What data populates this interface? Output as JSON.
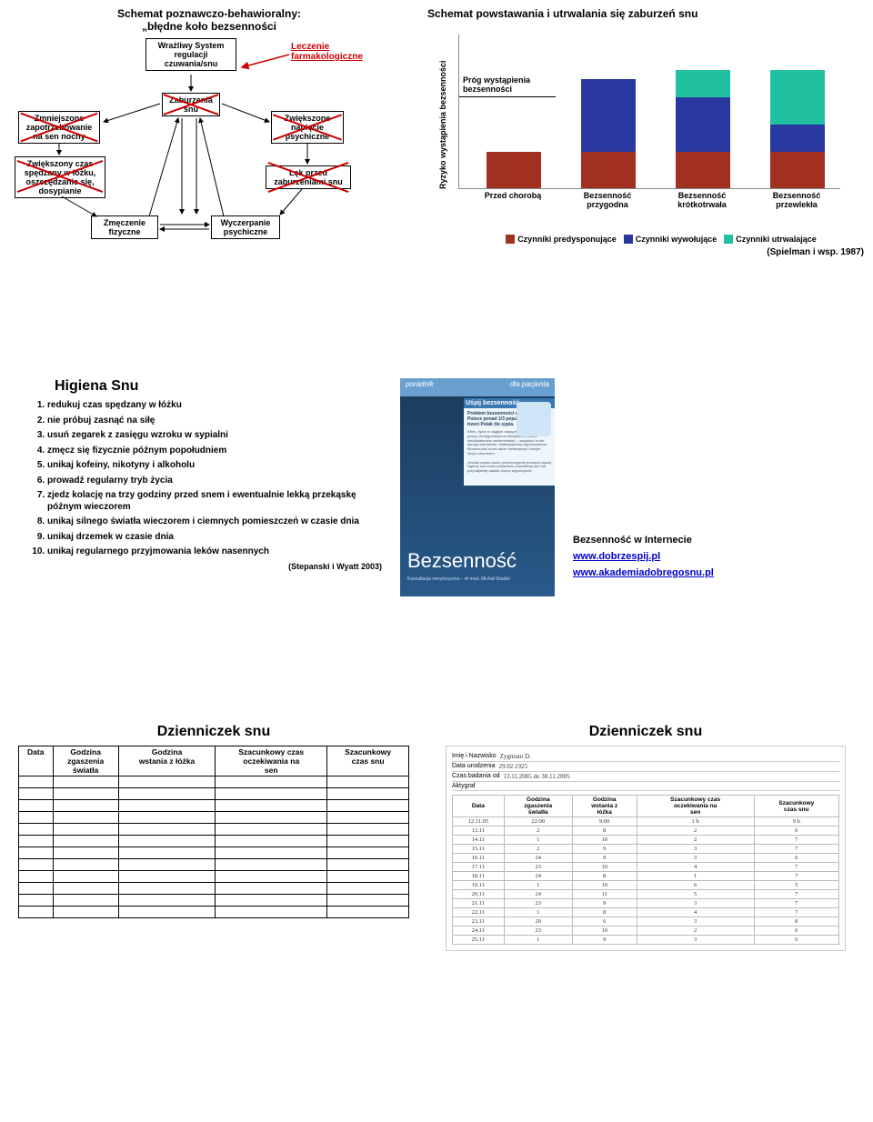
{
  "row1": {
    "left": {
      "title_l1": "Schemat poznawczo-behawioralny:",
      "title_l2": "„błędne koło bezsenności",
      "boxes": {
        "system": "Wrażliwy System\nregulacji\nczuwania/snu",
        "zaburzenia": "Zaburzenia\nsnu",
        "zmniejszone": "Zmniejszone\nzapotrzebowanie\nna sen nocny",
        "zwiekszony_czas": "Zwiększony czas\nspędzany w łóżku,\noszczędzanie się,\ndosypianie",
        "zmeczenie": "Zmęczenie\nfizyczne",
        "wyczerpanie": "Wyczerpanie\npsychiczne",
        "napiecie": "Zwiększone\nnapięcie\npsychiczne",
        "lek": "Lęk przed\nzaburzeniami snu"
      },
      "leczenie_l1": "Leczenie",
      "leczenie_l2": "farmakologiczne"
    },
    "right": {
      "title": "Schemat powstawania i utrwalania się zaburzeń snu",
      "y_axis": "Ryzyko wystąpienia bezsenności",
      "threshold": "Próg wystąpienia\nbezsenności",
      "categories": [
        "Przed chorobą",
        "Bezsenność\nprzygodna",
        "Bezsenność\nkrótkotrwała",
        "Bezsenność\nprzewlekła"
      ],
      "series": [
        {
          "name": "Czynniki predysponujące",
          "color": "#a03020",
          "values": [
            40,
            40,
            40,
            40
          ]
        },
        {
          "name": "Czynniki wywołujące",
          "color": "#2838a0",
          "values": [
            0,
            80,
            60,
            30
          ]
        },
        {
          "name": "Czynniki utrwalające",
          "color": "#20c0a0",
          "values": [
            0,
            0,
            30,
            60
          ]
        }
      ],
      "threshold_value": 100,
      "cite": "(Spielman  i wsp. 1987)"
    }
  },
  "row2": {
    "left": {
      "title": "Higiena Snu",
      "items": [
        "redukuj czas spędzany w łóżku",
        "nie próbuj zasnąć na siłę",
        "usuń zegarek z zasięgu wzroku w sypialni",
        "zmęcz się fizycznie późnym popołudniem",
        "unikaj kofeiny, nikotyny i alkoholu",
        "prowadź regularny tryb życia",
        "zjedz kolację na trzy godziny przed snem i ewentualnie lekką przekąskę późnym wieczorem",
        "unikaj silnego światła wieczorem i ciemnych pomieszczeń w czasie dnia",
        "unikaj drzemek w czasie dnia",
        "unikaj regularnego przyjmowania leków nasennych"
      ],
      "cite": "(Stepanski i Wyatt 2003)"
    },
    "right": {
      "booklet": {
        "top_left": "poradnik",
        "top_right": "dla pacjenta",
        "side_title": "Uśpij bezsenność",
        "side_lead": "Problem bezsenności dotyczy w Polsce ponad 1/3 populacji, czyli co trzeci Polak źle sypia.",
        "title": "Bezsenność",
        "sub": "Konsultacja merytoryczna – dr med. Michał Skalski"
      },
      "links_title": "Bezsenność w Internecie",
      "link1": "www.dobrzespij.pl",
      "link2": "www.akademiadobregosnu.pl"
    }
  },
  "row3": {
    "title": "Dzienniczek snu",
    "headers": [
      "Data",
      "Godzina\nzgaszenia\nświatła",
      "Godzina\nwstania z łóżka",
      "Szacunkowy czas\noczekiwania na\nsen",
      "Szacunkowy\nczas snu"
    ],
    "empty_rows": 12,
    "filled": {
      "name_label": "Imię i Nazwisko",
      "name_value": "Zygmunt D.",
      "dob_label": "Data urodzenia",
      "dob_value": "29.02.1925",
      "period_label": "Czas badania od",
      "period_value": "13.11.2005 do 30.11.2005",
      "akt": "Aktygraf",
      "headers": [
        "Data",
        "Godzina\nzgaszenia\nświatła",
        "Godzina\nwstania z\nłóżka",
        "Szacunkowy czas\noczekiwania na\nsen",
        "Szacunkowy\nczas snu"
      ],
      "rows": [
        [
          "12.11.05",
          "22:00",
          "9:00",
          "1 h",
          "9 h"
        ],
        [
          "13.11",
          "2",
          "8",
          "2",
          "6"
        ],
        [
          "14.11",
          "1",
          "10",
          "2",
          "7"
        ],
        [
          "15.11",
          "2",
          "9",
          "3",
          "7"
        ],
        [
          "16.11",
          "24",
          "9",
          "3",
          "6"
        ],
        [
          "17.11",
          "23",
          "10",
          "4",
          "7"
        ],
        [
          "18.11",
          "24",
          "8",
          "1",
          "7"
        ],
        [
          "19.11",
          "1",
          "10",
          "6",
          "5"
        ],
        [
          "20.11",
          "24",
          "11",
          "5",
          "7"
        ],
        [
          "21.11",
          "23",
          "9",
          "3",
          "7"
        ],
        [
          "22.11",
          "1",
          "8",
          "4",
          "7"
        ],
        [
          "23.11",
          "20",
          "6",
          "3",
          "8"
        ],
        [
          "24.11",
          "23",
          "10",
          "2",
          "6"
        ],
        [
          "25.11",
          "1",
          "9",
          "3",
          "6"
        ]
      ]
    }
  }
}
